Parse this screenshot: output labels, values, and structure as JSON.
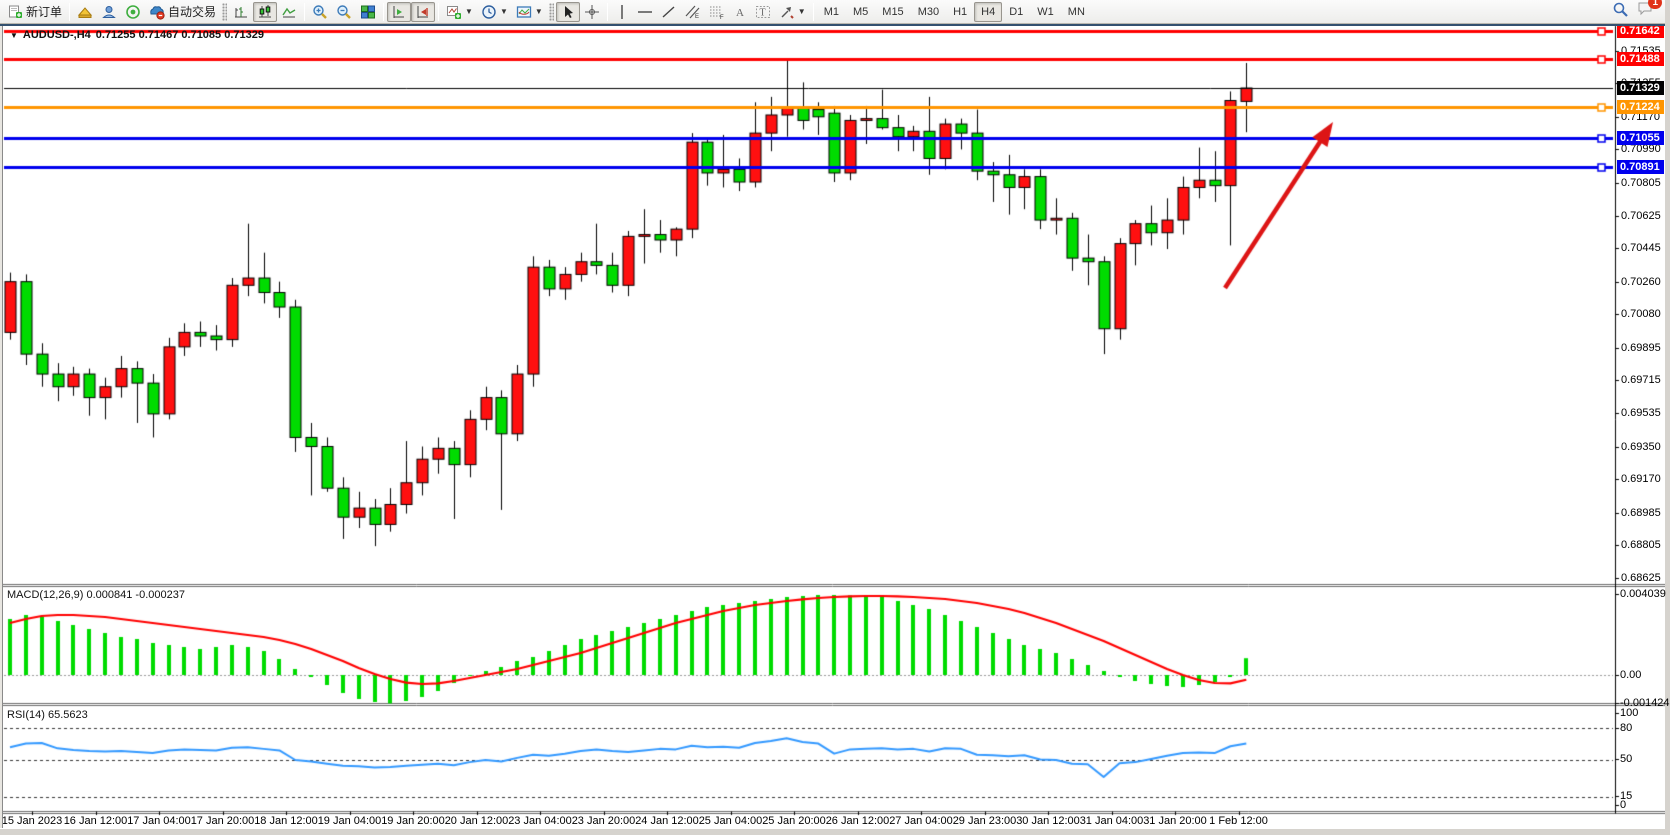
{
  "toolbar": {
    "new_order_label": "新订单",
    "autotrading_label": "自动交易",
    "timeframes": [
      "M1",
      "M5",
      "M15",
      "M30",
      "H1",
      "H4",
      "D1",
      "W1",
      "MN"
    ],
    "active_timeframe": "H4",
    "notification_count": "1"
  },
  "chart": {
    "symbol_title": "AUDUSD-,H4",
    "ohlc_text": "0.71255 0.71467 0.71085 0.71329",
    "open": "0.71255",
    "high": "0.71467",
    "low": "0.71085",
    "close": "0.71329"
  },
  "indicators": {
    "macd_label": "MACD(12,26,9)",
    "macd_values": "0.000841 -0.000237",
    "rsi_label": "RSI(14)",
    "rsi_value": "65.5623"
  },
  "price_axis": {
    "ticks": [
      0.71535,
      0.71355,
      0.7117,
      0.7099,
      0.70805,
      0.70625,
      0.70445,
      0.7026,
      0.7008,
      0.69895,
      0.69715,
      0.69535,
      0.6935,
      0.6917,
      0.68985,
      0.68805,
      0.68625
    ],
    "lines": [
      {
        "label": "0.71642",
        "price": 0.71642,
        "color": "#ff0000",
        "width": 3
      },
      {
        "label": "0.71488",
        "price": 0.71488,
        "color": "#ff0000",
        "width": 3
      },
      {
        "label": "0.71329",
        "price": 0.71329,
        "color": "#000000",
        "width": 1,
        "current": true
      },
      {
        "label": "0.71224",
        "price": 0.71224,
        "color": "#ff9500",
        "width": 3
      },
      {
        "label": "0.71055",
        "price": 0.71055,
        "color": "#0000ee",
        "width": 3
      },
      {
        "label": "0.70891",
        "price": 0.70891,
        "color": "#0000ee",
        "width": 3
      }
    ]
  },
  "macd_axis": [
    {
      "text": "0.004039",
      "v": 0.004039
    },
    {
      "text": "0.00",
      "v": 0
    },
    {
      "text": "-0.001424",
      "v": -0.001424
    }
  ],
  "rsi_axis": [
    {
      "text": "100",
      "v": 100
    },
    {
      "text": "80",
      "v": 80
    },
    {
      "text": "50",
      "v": 50
    },
    {
      "text": "15",
      "v": 15
    },
    {
      "text": "0",
      "v": 0
    }
  ],
  "time_axis": [
    "15 Jan 2023",
    "16 Jan 12:00",
    "17 Jan 04:00",
    "17 Jan 20:00",
    "18 Jan 12:00",
    "19 Jan 04:00",
    "19 Jan 20:00",
    "20 Jan 12:00",
    "23 Jan 04:00",
    "23 Jan 20:00",
    "24 Jan 12:00",
    "25 Jan 04:00",
    "25 Jan 20:00",
    "26 Jan 12:00",
    "27 Jan 04:00",
    "29 Jan 23:00",
    "30 Jan 12:00",
    "31 Jan 04:00",
    "31 Jan 20:00",
    "1 Feb 12:00"
  ],
  "chart_data": [
    {
      "type": "candlestick",
      "symbol": "AUDUSD",
      "timeframe": "H4",
      "title": "AUDUSD-,H4 0.71255 0.71467 0.71085 0.71329",
      "up_color_note": "red = bullish, green = bearish (CN convention)",
      "ohlc": [
        [
          0.6998,
          0.7031,
          0.6994,
          0.7026
        ],
        [
          0.7026,
          0.703,
          0.698,
          0.6986
        ],
        [
          0.6986,
          0.6992,
          0.6968,
          0.6975
        ],
        [
          0.6975,
          0.6981,
          0.696,
          0.6968
        ],
        [
          0.6968,
          0.6979,
          0.6963,
          0.6975
        ],
        [
          0.6975,
          0.6978,
          0.6952,
          0.6962
        ],
        [
          0.6962,
          0.6973,
          0.695,
          0.6968
        ],
        [
          0.6968,
          0.6985,
          0.6962,
          0.6978
        ],
        [
          0.6978,
          0.6982,
          0.6948,
          0.697
        ],
        [
          0.697,
          0.6975,
          0.694,
          0.6953
        ],
        [
          0.6953,
          0.6995,
          0.695,
          0.699
        ],
        [
          0.699,
          0.7003,
          0.6985,
          0.6998
        ],
        [
          0.6998,
          0.7004,
          0.699,
          0.6996
        ],
        [
          0.6996,
          0.7002,
          0.6988,
          0.6994
        ],
        [
          0.6994,
          0.7028,
          0.699,
          0.7024
        ],
        [
          0.7024,
          0.7058,
          0.7018,
          0.7028
        ],
        [
          0.7028,
          0.7042,
          0.7014,
          0.702
        ],
        [
          0.702,
          0.7026,
          0.7006,
          0.7012
        ],
        [
          0.7012,
          0.7016,
          0.6932,
          0.694
        ],
        [
          0.694,
          0.6948,
          0.6908,
          0.6935
        ],
        [
          0.6935,
          0.694,
          0.691,
          0.6912
        ],
        [
          0.6912,
          0.6918,
          0.6884,
          0.6896
        ],
        [
          0.6896,
          0.691,
          0.689,
          0.6901
        ],
        [
          0.6901,
          0.6906,
          0.688,
          0.6892
        ],
        [
          0.6892,
          0.6912,
          0.6888,
          0.6903
        ],
        [
          0.6903,
          0.6938,
          0.6898,
          0.6915
        ],
        [
          0.6915,
          0.6935,
          0.6908,
          0.6928
        ],
        [
          0.6928,
          0.694,
          0.692,
          0.6934
        ],
        [
          0.6934,
          0.6938,
          0.6895,
          0.6925
        ],
        [
          0.6925,
          0.6955,
          0.6918,
          0.695
        ],
        [
          0.695,
          0.6968,
          0.6944,
          0.6962
        ],
        [
          0.6962,
          0.6966,
          0.69,
          0.6942
        ],
        [
          0.6942,
          0.698,
          0.6938,
          0.6975
        ],
        [
          0.6975,
          0.704,
          0.6968,
          0.7034
        ],
        [
          0.7034,
          0.7038,
          0.7018,
          0.7022
        ],
        [
          0.7022,
          0.7034,
          0.7016,
          0.703
        ],
        [
          0.703,
          0.7042,
          0.7026,
          0.7037
        ],
        [
          0.7037,
          0.7058,
          0.703,
          0.7035
        ],
        [
          0.7035,
          0.7042,
          0.702,
          0.7024
        ],
        [
          0.7024,
          0.7054,
          0.7018,
          0.7051
        ],
        [
          0.7051,
          0.7066,
          0.7036,
          0.7052
        ],
        [
          0.7052,
          0.706,
          0.7042,
          0.7049
        ],
        [
          0.7049,
          0.7056,
          0.704,
          0.7055
        ],
        [
          0.7055,
          0.7108,
          0.705,
          0.7103
        ],
        [
          0.7103,
          0.7105,
          0.7079,
          0.7086
        ],
        [
          0.7086,
          0.7107,
          0.7078,
          0.7088
        ],
        [
          0.7088,
          0.7094,
          0.7076,
          0.7081
        ],
        [
          0.7081,
          0.7125,
          0.7078,
          0.7108
        ],
        [
          0.7108,
          0.7128,
          0.7098,
          0.7118
        ],
        [
          0.7118,
          0.7149,
          0.7106,
          0.7122
        ],
        [
          0.7122,
          0.7136,
          0.711,
          0.7115
        ],
        [
          0.7121,
          0.7125,
          0.7107,
          0.7117
        ],
        [
          0.7119,
          0.7123,
          0.7081,
          0.7086
        ],
        [
          0.7086,
          0.7118,
          0.7082,
          0.7115
        ],
        [
          0.7115,
          0.7123,
          0.7102,
          0.7116
        ],
        [
          0.7116,
          0.7132,
          0.711,
          0.7111
        ],
        [
          0.7111,
          0.7118,
          0.7098,
          0.7106
        ],
        [
          0.7106,
          0.7112,
          0.7098,
          0.7109
        ],
        [
          0.7109,
          0.7128,
          0.7085,
          0.7094
        ],
        [
          0.7094,
          0.7116,
          0.7088,
          0.7113
        ],
        [
          0.7113,
          0.7116,
          0.7099,
          0.7108
        ],
        [
          0.7108,
          0.7121,
          0.7082,
          0.7087
        ],
        [
          0.7087,
          0.7092,
          0.707,
          0.7085
        ],
        [
          0.7085,
          0.7096,
          0.7063,
          0.7078
        ],
        [
          0.7078,
          0.7088,
          0.7066,
          0.7084
        ],
        [
          0.7084,
          0.7088,
          0.7055,
          0.706
        ],
        [
          0.706,
          0.7072,
          0.7052,
          0.7061
        ],
        [
          0.7061,
          0.7064,
          0.7032,
          0.7039
        ],
        [
          0.7039,
          0.7052,
          0.7024,
          0.7037
        ],
        [
          0.7037,
          0.704,
          0.6986,
          0.7
        ],
        [
          0.7,
          0.705,
          0.6994,
          0.7047
        ],
        [
          0.7047,
          0.706,
          0.7035,
          0.7058
        ],
        [
          0.7058,
          0.7068,
          0.7046,
          0.7053
        ],
        [
          0.7053,
          0.7072,
          0.7044,
          0.706
        ],
        [
          0.706,
          0.7084,
          0.7052,
          0.7078
        ],
        [
          0.7078,
          0.71,
          0.7072,
          0.7082
        ],
        [
          0.7082,
          0.7098,
          0.707,
          0.7079
        ],
        [
          0.7079,
          0.7131,
          0.7046,
          0.7126
        ],
        [
          0.71255,
          0.71467,
          0.71085,
          0.71329
        ]
      ]
    },
    {
      "type": "bar",
      "name": "MACD",
      "params": "12,26,9",
      "current_values": "0.000841 -0.000237",
      "ylim": [
        -0.001424,
        0.004039
      ],
      "histogram_x1000": [
        2.8,
        3.0,
        2.9,
        2.7,
        2.5,
        2.3,
        2.1,
        1.9,
        1.8,
        1.6,
        1.5,
        1.4,
        1.3,
        1.4,
        1.5,
        1.4,
        1.2,
        0.8,
        0.3,
        -0.1,
        -0.5,
        -0.9,
        -1.2,
        -1.35,
        -1.42,
        -1.3,
        -1.1,
        -0.8,
        -0.4,
        0.0,
        0.2,
        0.4,
        0.7,
        0.9,
        1.2,
        1.5,
        1.8,
        2.0,
        2.2,
        2.4,
        2.6,
        2.8,
        3.0,
        3.2,
        3.4,
        3.5,
        3.6,
        3.7,
        3.8,
        3.9,
        3.95,
        4.0,
        4.0,
        3.98,
        3.95,
        3.9,
        3.7,
        3.5,
        3.3,
        3.0,
        2.7,
        2.4,
        2.1,
        1.8,
        1.5,
        1.3,
        1.1,
        0.8,
        0.5,
        0.2,
        -0.1,
        -0.3,
        -0.45,
        -0.55,
        -0.6,
        -0.5,
        -0.35,
        -0.1,
        0.84
      ],
      "signal_x1000": [
        2.6,
        2.8,
        2.95,
        3.0,
        3.0,
        2.95,
        2.9,
        2.8,
        2.7,
        2.6,
        2.5,
        2.4,
        2.3,
        2.2,
        2.1,
        2.0,
        1.9,
        1.75,
        1.55,
        1.3,
        1.0,
        0.7,
        0.35,
        0.05,
        -0.2,
        -0.38,
        -0.45,
        -0.42,
        -0.3,
        -0.15,
        0.0,
        0.15,
        0.3,
        0.5,
        0.7,
        0.9,
        1.1,
        1.35,
        1.6,
        1.85,
        2.1,
        2.35,
        2.6,
        2.8,
        3.0,
        3.2,
        3.35,
        3.5,
        3.6,
        3.7,
        3.78,
        3.85,
        3.9,
        3.93,
        3.95,
        3.95,
        3.93,
        3.9,
        3.85,
        3.8,
        3.7,
        3.6,
        3.45,
        3.3,
        3.1,
        2.85,
        2.6,
        2.3,
        2.0,
        1.7,
        1.35,
        1.0,
        0.65,
        0.3,
        0.0,
        -0.25,
        -0.4,
        -0.42,
        -0.237
      ]
    },
    {
      "type": "line",
      "name": "RSI",
      "period": 14,
      "current_value": 65.5623,
      "levels": [
        80,
        50,
        15
      ],
      "ylim": [
        0,
        100
      ],
      "values": [
        62,
        65.5,
        66,
        61,
        59.5,
        58.5,
        58,
        58.5,
        57.5,
        56.5,
        59,
        60,
        59.5,
        59,
        61.5,
        62,
        60.5,
        59,
        50,
        48.5,
        46.5,
        44.5,
        44,
        43,
        43.5,
        44.5,
        45.5,
        46.5,
        45,
        48,
        50,
        48.5,
        52,
        55,
        54,
        56,
        58.5,
        60,
        58.5,
        57.5,
        59,
        60.5,
        60,
        63.5,
        62,
        62.5,
        61.5,
        66,
        68,
        70.5,
        67,
        65.5,
        56,
        60,
        60.5,
        61,
        60,
        60.5,
        58,
        61,
        60.5,
        55,
        54.5,
        53.5,
        54.5,
        50.5,
        50,
        46.5,
        46,
        34,
        47,
        48,
        51,
        54,
        56.5,
        57,
        56.5,
        63,
        65.5623
      ]
    }
  ],
  "annotations": {
    "trend_arrow": {
      "from_x": 1225,
      "from_y": 288,
      "to_x": 1333,
      "to_y": 122,
      "color": "#dd1515"
    }
  },
  "colors": {
    "bull_candle": "#ff1010",
    "bear_candle": "#00dc00",
    "wick": "#000000",
    "macd_hist": "#00dc00",
    "macd_signal": "#ff0000",
    "rsi_line": "#3399ff",
    "axis_border": "#000000"
  }
}
